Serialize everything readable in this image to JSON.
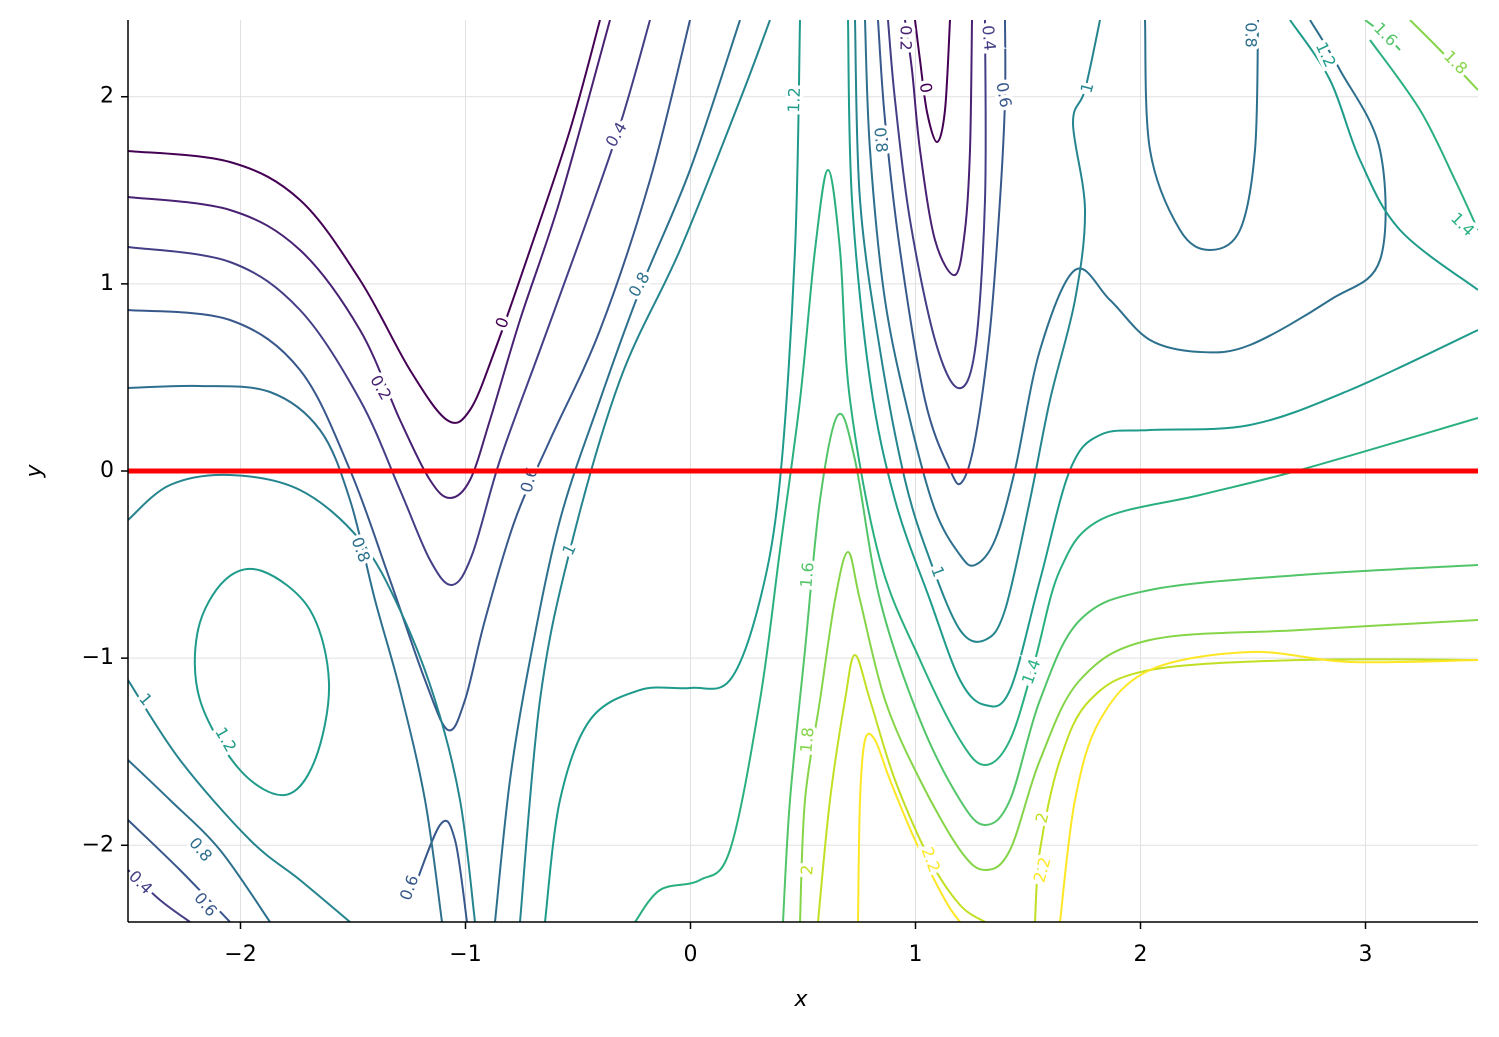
{
  "chart_data": {
    "type": "contour",
    "xlabel": "x",
    "ylabel": "y",
    "levels": [
      0,
      0.2,
      0.4,
      0.6,
      0.8,
      1,
      1.2,
      1.4,
      1.6,
      1.8,
      2,
      2.2
    ],
    "colors": [
      "#440154",
      "#482173",
      "#433e85",
      "#38588c",
      "#2d708e",
      "#25858e",
      "#1e9b8a",
      "#2ab07f",
      "#52c569",
      "#86d549",
      "#c2df23",
      "#fde725"
    ],
    "xlim": [
      -2.5,
      3.5
    ],
    "ylim": [
      -2.41,
      2.41
    ],
    "xticks": [
      {
        "value": -2,
        "label": "−2"
      },
      {
        "value": -1,
        "label": "−1"
      },
      0,
      1,
      2,
      3
    ],
    "yticks": [
      {
        "value": -2,
        "label": "−2"
      },
      {
        "value": -1,
        "label": "−1"
      },
      0,
      1,
      2
    ],
    "grid": true,
    "hline": {
      "y": 0,
      "color": "red"
    }
  }
}
